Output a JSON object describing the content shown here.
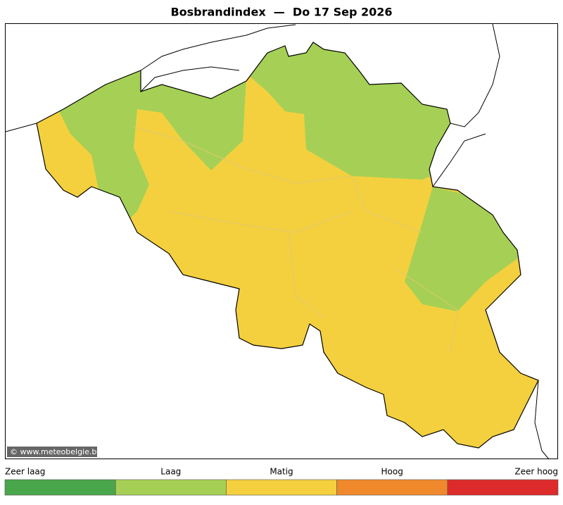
{
  "title": "Bosbrandindex  —  Do 17 Sep 2026",
  "credit": "© www.meteobelgie.be",
  "legend": [
    {
      "label": "Zeer laag",
      "color": "#4aa64a"
    },
    {
      "label": "Laag",
      "color": "#a5d055"
    },
    {
      "label": "Matig",
      "color": "#f4d03f"
    },
    {
      "label": "Hoog",
      "color": "#f0892c"
    },
    {
      "label": "Zeer hoog",
      "color": "#dd2b2b"
    }
  ]
}
